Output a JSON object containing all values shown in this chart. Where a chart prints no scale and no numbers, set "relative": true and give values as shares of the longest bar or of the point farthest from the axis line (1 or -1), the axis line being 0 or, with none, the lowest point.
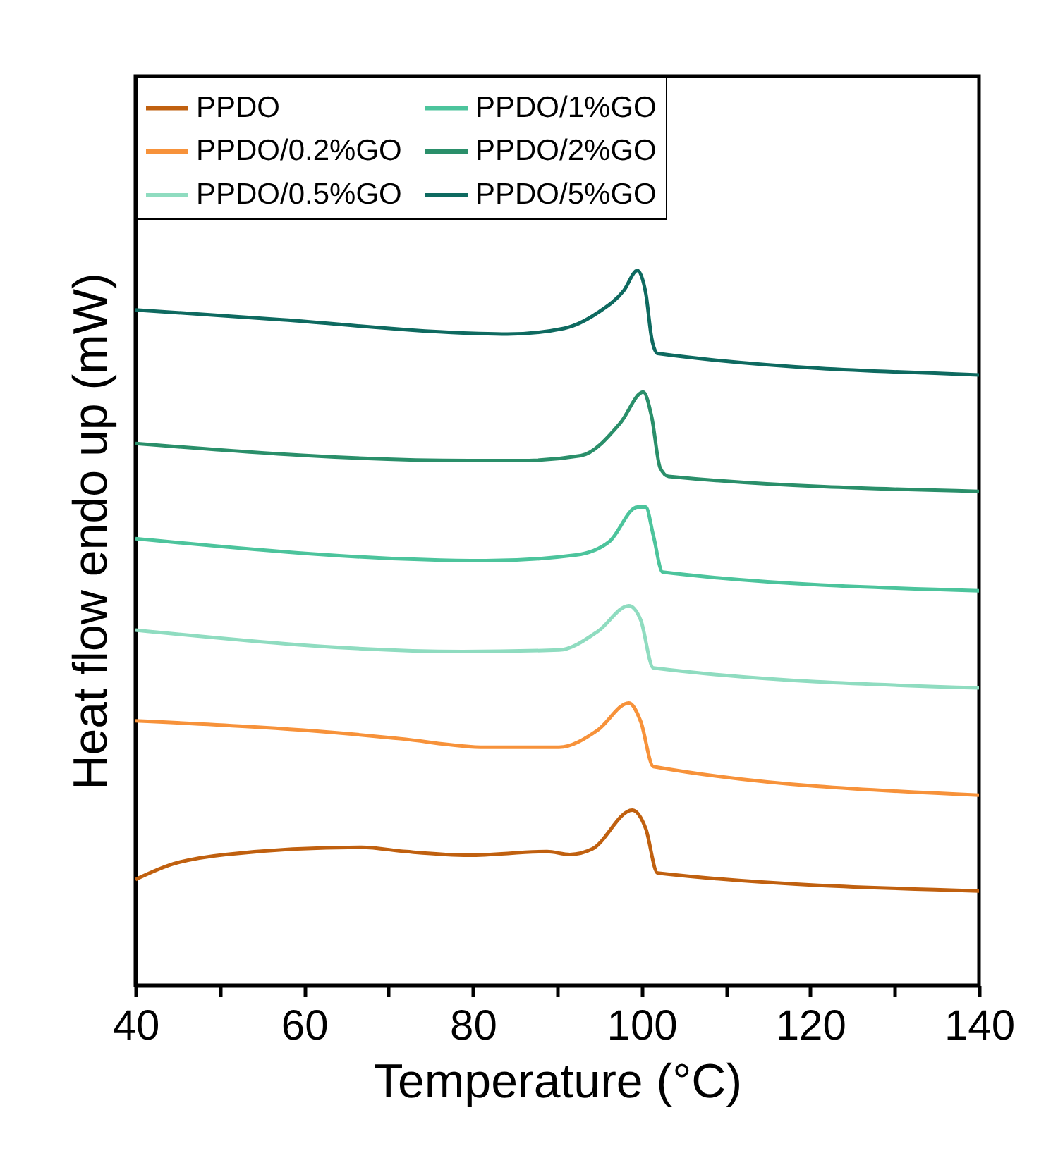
{
  "chart_data": {
    "type": "line",
    "xlabel": "Temperature (°C)",
    "ylabel": "Heat flow endo up (mW)",
    "relative": true,
    "xlim": [
      40,
      140
    ],
    "xticks": [
      40,
      {
        "value": 50,
        "label": null
      },
      60,
      {
        "value": 70,
        "label": null
      },
      80,
      {
        "value": 90,
        "label": null
      },
      100,
      {
        "value": 110,
        "label": null
      },
      120,
      {
        "value": 130,
        "label": null
      },
      140
    ],
    "legend": "top",
    "grid": false,
    "series": [
      {
        "name": "PPDO",
        "color": "#c0600f",
        "x": [
          40,
          44,
          50.7,
          66.8,
          72.1,
          79.5,
          88.8,
          91.5,
          94.2,
          98.9,
          100.5,
          101.9,
          140
        ],
        "values": [
          0.148,
          0.168,
          0.183,
          0.193,
          0.187,
          0.182,
          0.187,
          0.183,
          0.191,
          0.245,
          0.219,
          0.157,
          0.132
        ]
      },
      {
        "name": "PPDO/0.2%GO",
        "color": "#f7923a",
        "x": [
          40,
          66.1,
          71.4,
          81.5,
          90.2,
          94.8,
          98.5,
          99.9,
          101.4,
          140
        ],
        "values": [
          0.37,
          0.351,
          0.345,
          0.333,
          0.333,
          0.357,
          0.395,
          0.369,
          0.306,
          0.266
        ]
      },
      {
        "name": "PPDO/0.5%GO",
        "color": "#8fdcc0",
        "x": [
          40,
          78.8,
          90.2,
          94.8,
          98.5,
          99.9,
          101.4,
          140
        ],
        "values": [
          0.497,
          0.467,
          0.469,
          0.495,
          0.531,
          0.511,
          0.444,
          0.416
        ]
      },
      {
        "name": "PPDO/1%GO",
        "color": "#4cc49c",
        "x": [
          40,
          81.5,
          92.2,
          96.2,
          99.5,
          100.5,
          101.4,
          102.5,
          140
        ],
        "values": [
          0.625,
          0.594,
          0.602,
          0.621,
          0.669,
          0.669,
          0.629,
          0.578,
          0.552
        ]
      },
      {
        "name": "PPDO/2%GO",
        "color": "#2a8f6a",
        "x": [
          40,
          79.5,
          85.5,
          92.8,
          97.5,
          100.2,
          101.2,
          102.2,
          103.2,
          140
        ],
        "values": [
          0.758,
          0.734,
          0.734,
          0.741,
          0.787,
          0.83,
          0.795,
          0.724,
          0.712,
          0.691
        ]
      },
      {
        "name": "PPDO/5%GO",
        "color": "#0e6a60",
        "x": [
          40,
          57.4,
          80.1,
          84.1,
          90.8,
          94.8,
          97.9,
          99.5,
          100.5,
          101.2,
          101.9,
          140
        ],
        "values": [
          0.945,
          0.931,
          0.912,
          0.911,
          0.919,
          0.941,
          0.972,
          1.0,
          0.968,
          0.905,
          0.884,
          0.854
        ]
      }
    ]
  }
}
